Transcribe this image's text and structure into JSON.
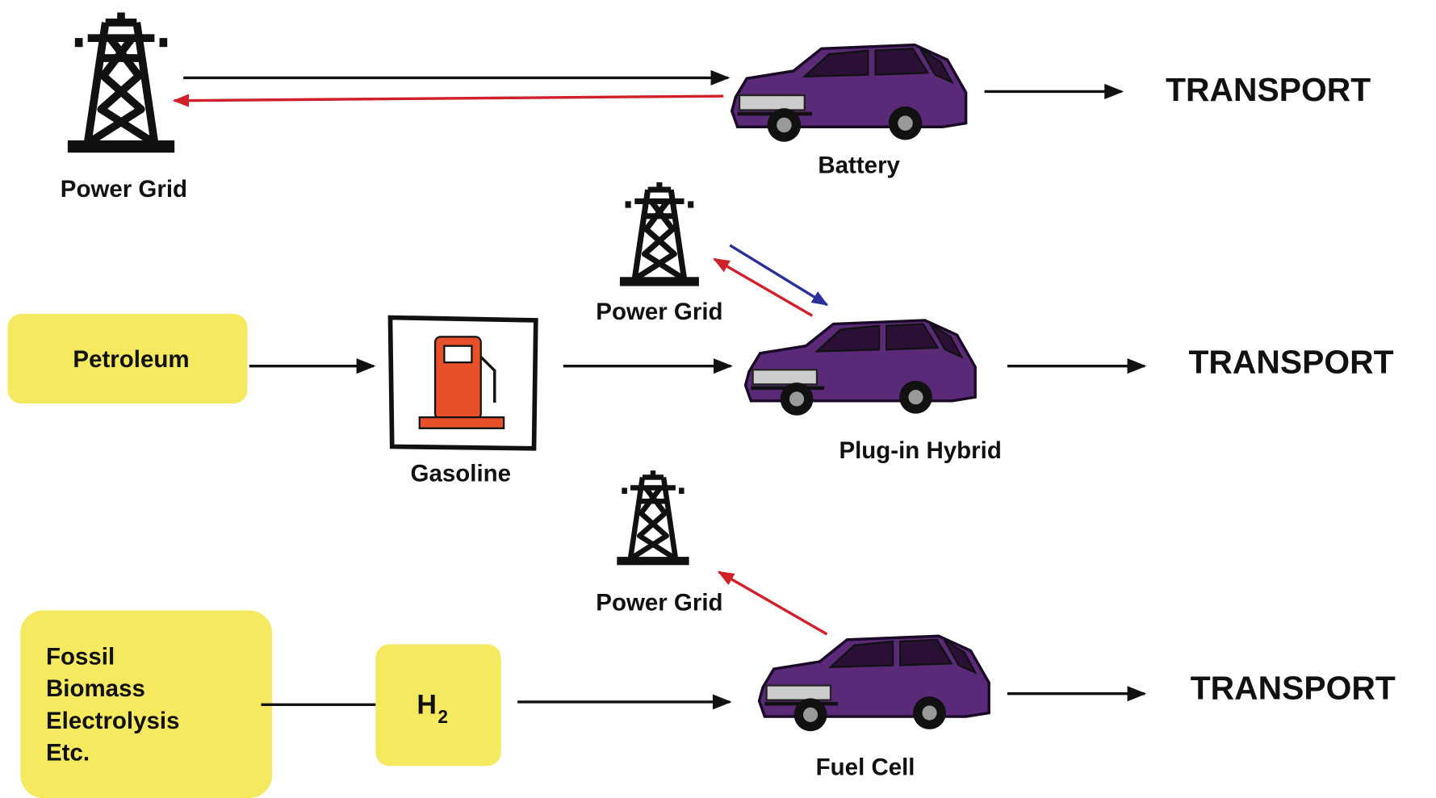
{
  "rows": [
    {
      "grid_label": "Power Grid",
      "vehicle": "Battery",
      "output": "TRANSPORT"
    },
    {
      "source": "Petroleum",
      "fuel": "Gasoline",
      "grid_label": "Power Grid",
      "vehicle": "Plug-in Hybrid",
      "output": "TRANSPORT"
    },
    {
      "source_lines": [
        "Fossil",
        "Biomass",
        "Electrolysis",
        "Etc."
      ],
      "fuel": {
        "main": "H",
        "subscript": "2"
      },
      "grid_label": "Power Grid",
      "vehicle": "Fuel Cell",
      "output": "TRANSPORT"
    }
  ]
}
